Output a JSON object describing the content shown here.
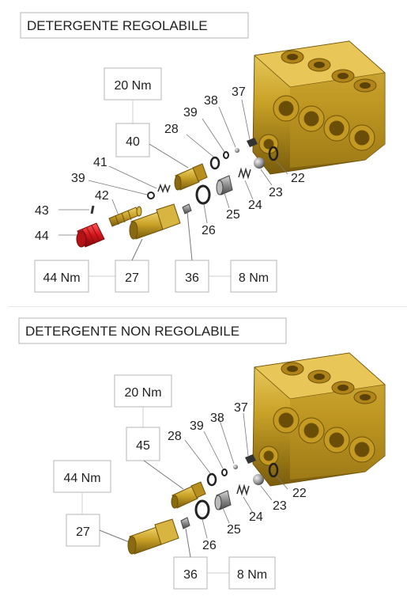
{
  "colors": {
    "brass": "#c9a227",
    "brass_dark": "#8a6a10",
    "brass_light": "#e3c45a",
    "red_knob": "#d4151b",
    "steel": "#9a9a9a",
    "steel_dark": "#555555",
    "box_border": "#b5b5b5",
    "leader": "#777777"
  },
  "sections": [
    {
      "title": "DETERGENTE REGOLABILE",
      "torque_boxes": {
        "top": "20 Nm",
        "left": "44 Nm",
        "right": "8 Nm"
      },
      "part_boxes": {
        "nozzle_body": "40",
        "fitting": "27",
        "plug": "36"
      },
      "part_labels": {
        "p22": "22",
        "p23": "23",
        "p24": "24",
        "p25": "25",
        "p26": "26",
        "p28": "28",
        "p37": "37",
        "p38": "38",
        "p39a": "39",
        "p39b": "39",
        "p41": "41",
        "p42": "42",
        "p43": "43",
        "p44": "44"
      }
    },
    {
      "title": "DETERGENTE NON REGOLABILE",
      "torque_boxes": {
        "top": "20 Nm",
        "left": "44 Nm",
        "right": "8 Nm"
      },
      "part_boxes": {
        "nozzle_body": "45",
        "fitting": "27",
        "plug": "36"
      },
      "part_labels": {
        "p22": "22",
        "p23": "23",
        "p24": "24",
        "p25": "25",
        "p26": "26",
        "p28": "28",
        "p37": "37",
        "p38": "38",
        "p39": "39"
      }
    }
  ]
}
